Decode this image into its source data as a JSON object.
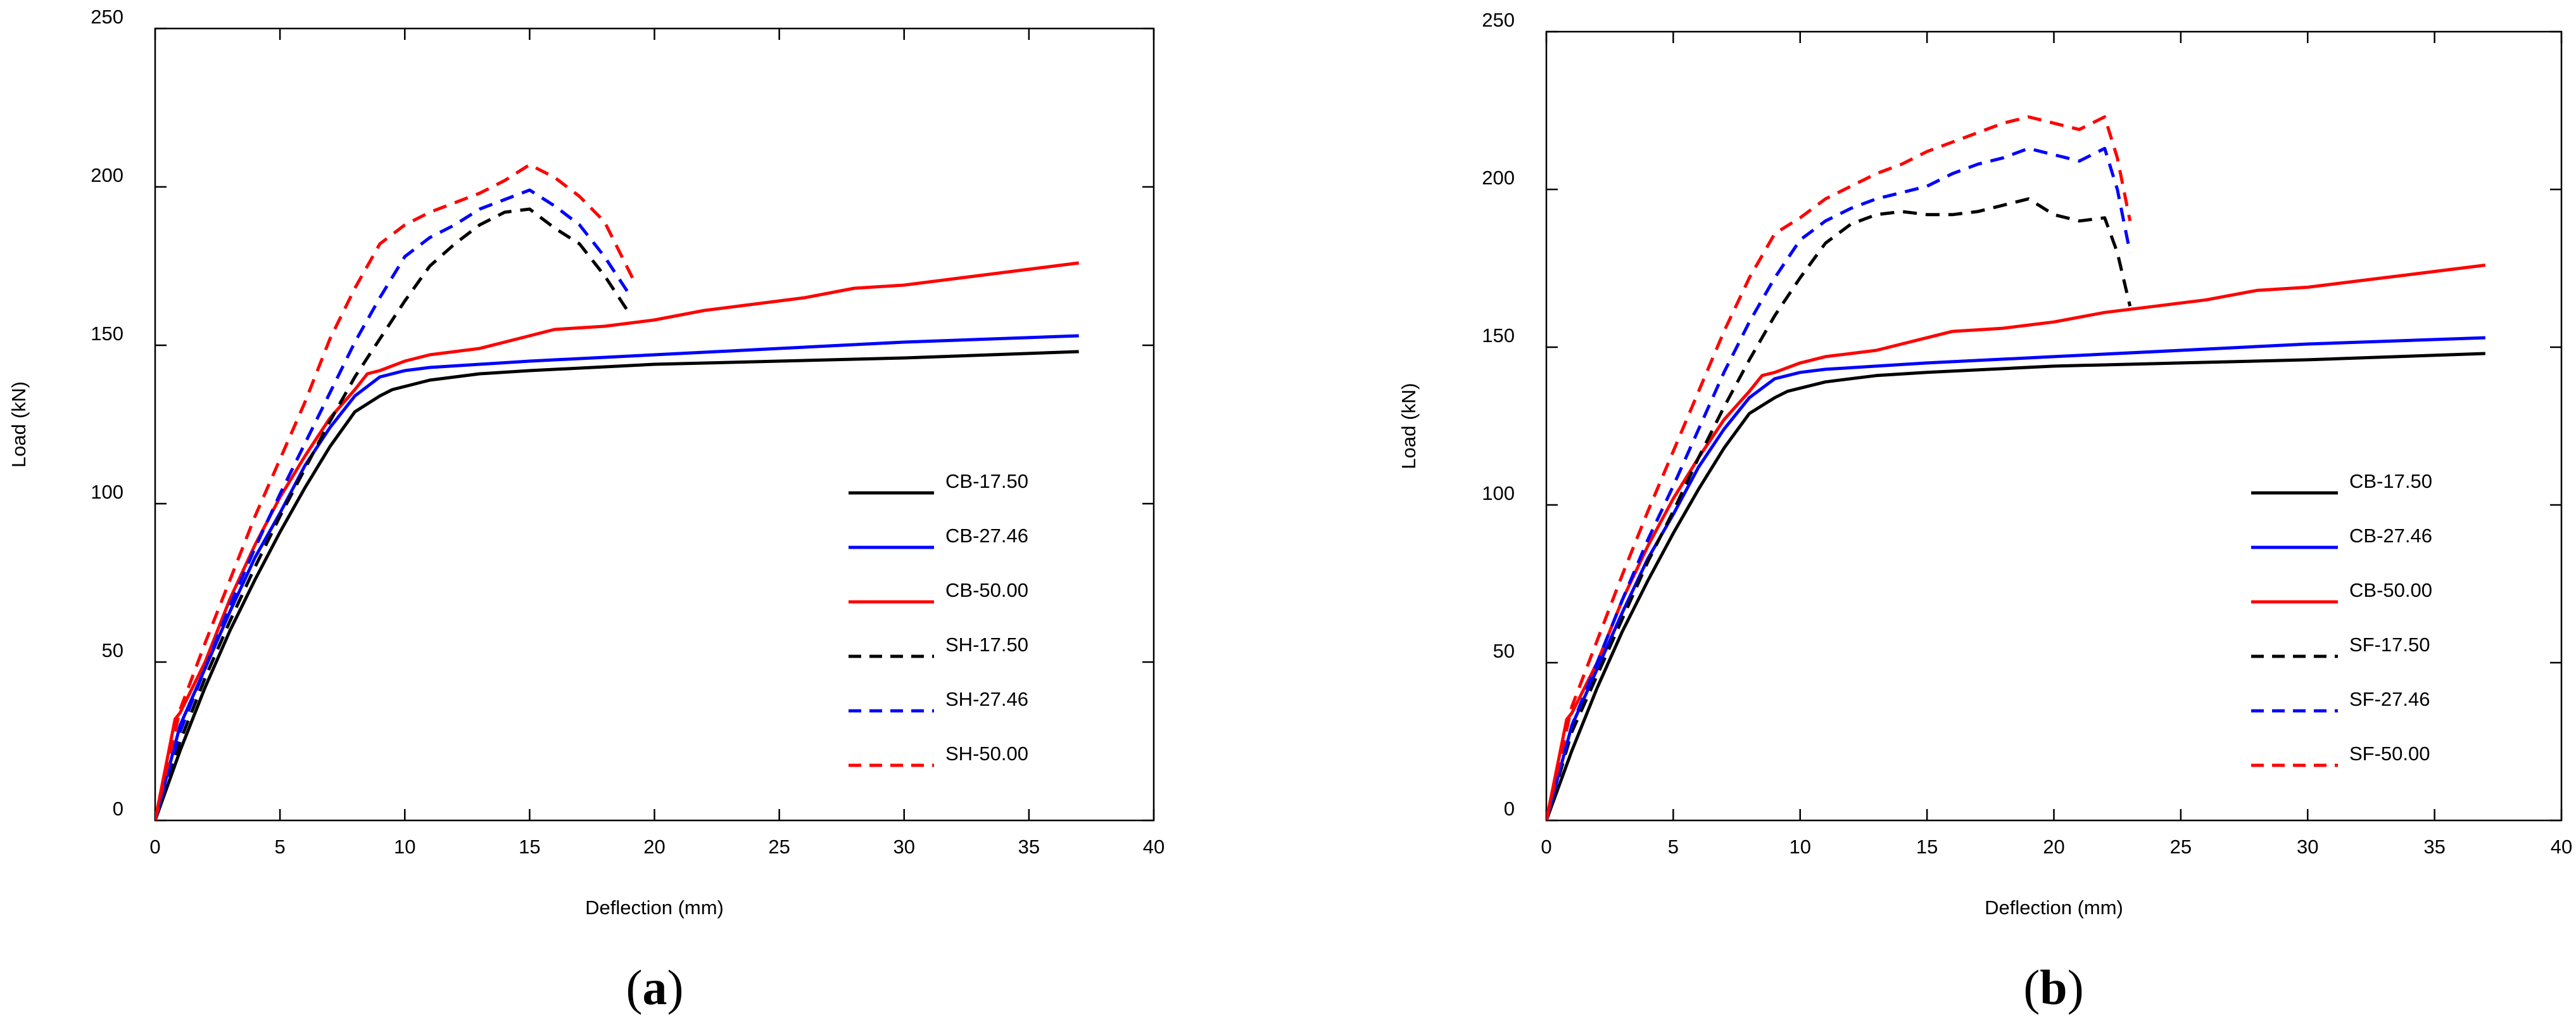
{
  "chart_data": [
    {
      "type": "line",
      "panel_label": "(a)",
      "panel_letter": "a",
      "xlabel": "Deflection (mm)",
      "ylabel": "Load (kN)",
      "xlim": [
        0,
        40
      ],
      "ylim": [
        0,
        250
      ],
      "xticks": [
        0,
        5,
        10,
        15,
        20,
        25,
        30,
        35,
        40
      ],
      "yticks": [
        0,
        50,
        100,
        150,
        200,
        250
      ],
      "legend_position": "lower-right",
      "series": [
        {
          "name": "CB-17.50",
          "color": "#000000",
          "dashed": false,
          "x": [
            0,
            1,
            2,
            3,
            4,
            5,
            6,
            7,
            8,
            9,
            9.5,
            10,
            11,
            13,
            15,
            20,
            25,
            30,
            37
          ],
          "y": [
            0,
            22,
            42,
            60,
            76,
            91,
            105,
            118,
            129,
            134,
            136,
            137,
            139,
            141,
            142,
            144,
            145,
            146,
            148
          ]
        },
        {
          "name": "CB-27.46",
          "color": "#0000ff",
          "dashed": false,
          "x": [
            0,
            1,
            2,
            3,
            4,
            5,
            6,
            7,
            8,
            8.5,
            9,
            10,
            11,
            13,
            15,
            20,
            25,
            30,
            37
          ],
          "y": [
            0,
            30,
            48,
            66,
            83,
            97,
            112,
            124,
            134,
            137,
            140,
            142,
            143,
            144,
            145,
            147,
            149,
            151,
            153
          ]
        },
        {
          "name": "CB-50.00",
          "color": "#ff0000",
          "dashed": false,
          "x": [
            0,
            0.8,
            1,
            2,
            3,
            4,
            5,
            6,
            7,
            8,
            8.5,
            9,
            10,
            11,
            12,
            13,
            15,
            16,
            17,
            18,
            19,
            20,
            22,
            24,
            26,
            28,
            30,
            32,
            34,
            37
          ],
          "y": [
            0,
            32,
            34,
            50,
            70,
            87,
            102,
            115,
            127,
            136,
            141,
            142,
            145,
            147,
            148,
            149,
            153,
            155,
            155.5,
            156,
            157,
            158,
            161,
            163,
            165,
            168,
            169,
            171,
            173,
            176
          ]
        },
        {
          "name": "SH-17.50",
          "color": "#000000",
          "dashed": true,
          "x": [
            0,
            1,
            2,
            3,
            4,
            5,
            6,
            7,
            8,
            9,
            10,
            11,
            12,
            13,
            14,
            15,
            16,
            17,
            18,
            19
          ],
          "y": [
            0,
            25,
            45,
            63,
            80,
            96,
            111,
            126,
            140,
            152,
            164,
            175,
            182,
            188,
            192,
            193,
            187,
            182,
            172,
            160
          ]
        },
        {
          "name": "SH-27.46",
          "color": "#0000ff",
          "dashed": true,
          "x": [
            0,
            1,
            2,
            3,
            4,
            5,
            6,
            7,
            8,
            9,
            10,
            11,
            12,
            13,
            14,
            15,
            16,
            17,
            18,
            19
          ],
          "y": [
            0,
            28,
            48,
            68,
            86,
            103,
            119,
            135,
            151,
            165,
            178,
            184,
            188,
            193,
            196,
            199,
            194,
            188,
            178,
            166
          ]
        },
        {
          "name": "SH-50.00",
          "color": "#ff0000",
          "dashed": true,
          "x": [
            0,
            1,
            2,
            3,
            4,
            5,
            6,
            7,
            8,
            9,
            10,
            11,
            12,
            13,
            14,
            15,
            16,
            17,
            18,
            19.2
          ],
          "y": [
            0,
            35,
            56,
            76,
            96,
            114,
            132,
            152,
            168,
            182,
            188,
            192,
            195,
            198,
            202,
            207,
            203,
            197,
            189,
            170
          ]
        }
      ]
    },
    {
      "type": "line",
      "panel_label": "(b)",
      "panel_letter": "b",
      "xlabel": "Deflection (mm)",
      "ylabel": "Load (kN)",
      "xlim": [
        0,
        40
      ],
      "ylim": [
        0,
        250
      ],
      "xticks": [
        0,
        5,
        10,
        15,
        20,
        25,
        30,
        35,
        40
      ],
      "yticks": [
        0,
        50,
        100,
        150,
        200,
        250
      ],
      "legend_position": "lower-right",
      "series": [
        {
          "name": "CB-17.50",
          "color": "#000000",
          "dashed": false,
          "x": [
            0,
            1,
            2,
            3,
            4,
            5,
            6,
            7,
            8,
            9,
            9.5,
            10,
            11,
            13,
            15,
            20,
            25,
            30,
            37
          ],
          "y": [
            0,
            22,
            42,
            60,
            76,
            91,
            105,
            118,
            129,
            134,
            136,
            137,
            139,
            141,
            142,
            144,
            145,
            146,
            148
          ]
        },
        {
          "name": "CB-27.46",
          "color": "#0000ff",
          "dashed": false,
          "x": [
            0,
            1,
            2,
            3,
            4,
            5,
            6,
            7,
            8,
            8.5,
            9,
            10,
            11,
            13,
            15,
            20,
            25,
            30,
            37
          ],
          "y": [
            0,
            30,
            48,
            66,
            83,
            97,
            112,
            124,
            134,
            137,
            140,
            142,
            143,
            144,
            145,
            147,
            149,
            151,
            153
          ]
        },
        {
          "name": "CB-50.00",
          "color": "#ff0000",
          "dashed": false,
          "x": [
            0,
            0.8,
            1,
            2,
            3,
            4,
            5,
            6,
            7,
            8,
            8.5,
            9,
            10,
            11,
            12,
            13,
            15,
            16,
            17,
            18,
            19,
            20,
            22,
            24,
            26,
            28,
            30,
            32,
            34,
            37
          ],
          "y": [
            0,
            32,
            34,
            50,
            70,
            87,
            102,
            115,
            127,
            136,
            141,
            142,
            145,
            147,
            148,
            149,
            153,
            155,
            155.5,
            156,
            157,
            158,
            161,
            163,
            165,
            168,
            169,
            171,
            173,
            176
          ]
        },
        {
          "name": "SF-17.50",
          "color": "#000000",
          "dashed": true,
          "x": [
            0,
            1,
            2,
            3,
            4,
            5,
            6,
            7,
            8,
            9,
            10,
            11,
            12,
            13,
            14,
            15,
            16,
            17,
            18,
            19,
            20,
            21,
            22,
            22.5,
            23
          ],
          "y": [
            0,
            28,
            46,
            64,
            82,
            98,
            115,
            131,
            146,
            160,
            172,
            183,
            189,
            192,
            193,
            192,
            192,
            193,
            195,
            197,
            192,
            190,
            191,
            180,
            163
          ]
        },
        {
          "name": "SF-27.46",
          "color": "#0000ff",
          "dashed": true,
          "x": [
            0,
            1,
            2,
            3,
            4,
            5,
            6,
            7,
            8,
            9,
            10,
            11,
            12,
            13,
            14,
            15,
            16,
            17,
            18,
            19,
            20,
            21,
            22,
            22.5,
            23
          ],
          "y": [
            0,
            30,
            50,
            70,
            89,
            106,
            124,
            142,
            158,
            172,
            184,
            190,
            194,
            197,
            199,
            201,
            205,
            208,
            210,
            213,
            211,
            209,
            213,
            200,
            180
          ]
        },
        {
          "name": "SF-50.00",
          "color": "#ff0000",
          "dashed": true,
          "x": [
            0,
            1,
            2,
            3,
            4,
            5,
            6,
            7,
            8,
            9,
            10,
            11,
            12,
            13,
            14,
            15,
            16,
            17,
            18,
            19,
            20,
            21,
            22,
            22.5,
            23
          ],
          "y": [
            0,
            36,
            57,
            78,
            98,
            117,
            136,
            155,
            172,
            186,
            191,
            197,
            201,
            205,
            208,
            212,
            215,
            218,
            221,
            223,
            221,
            219,
            223,
            210,
            190
          ]
        }
      ]
    }
  ]
}
